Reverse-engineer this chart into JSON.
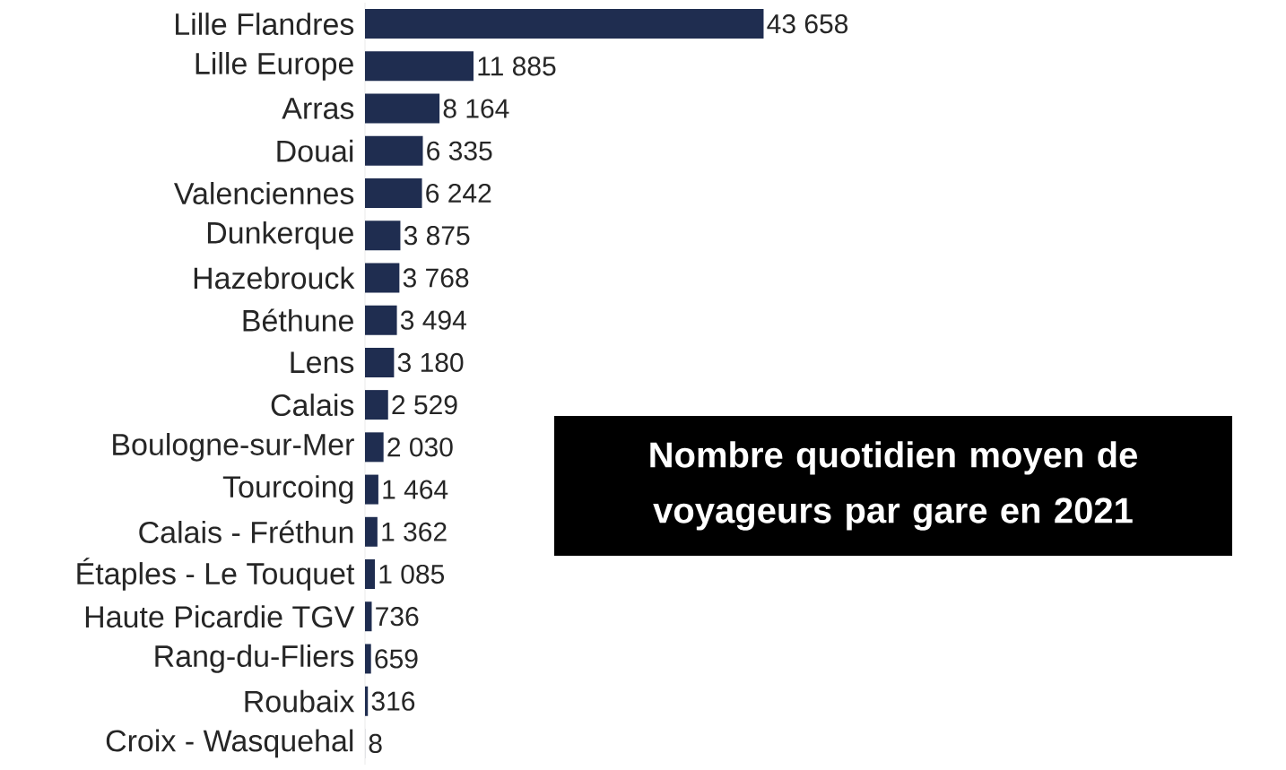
{
  "chart_data": {
    "type": "bar",
    "orientation": "horizontal",
    "title": "Nombre quotidien moyen de voyageurs par gare en 2021",
    "categories": [
      "Lille Flandres",
      "Lille Europe",
      "Arras",
      "Douai",
      "Valenciennes",
      "Dunkerque",
      "Hazebrouck",
      "Béthune",
      "Lens",
      "Calais",
      "Boulogne-sur-Mer",
      "Tourcoing",
      "Calais - Fréthun",
      "Étaples - Le Touquet",
      "Haute Picardie TGV",
      "Rang-du-Fliers",
      "Roubaix",
      "Croix - Wasquehal"
    ],
    "values": [
      43658,
      11885,
      8164,
      6335,
      6242,
      3875,
      3768,
      3494,
      3180,
      2529,
      2030,
      1464,
      1362,
      1085,
      736,
      659,
      316,
      8
    ],
    "value_labels": [
      "43 658",
      "11 885",
      "8 164",
      "6 335",
      "6 242",
      "3 875",
      "3 768",
      "3 494",
      "3 180",
      "2 529",
      "2 030",
      "1 464",
      "1 362",
      "1 085",
      "736",
      "659",
      "316",
      "8"
    ],
    "color": "#1f2d50"
  }
}
